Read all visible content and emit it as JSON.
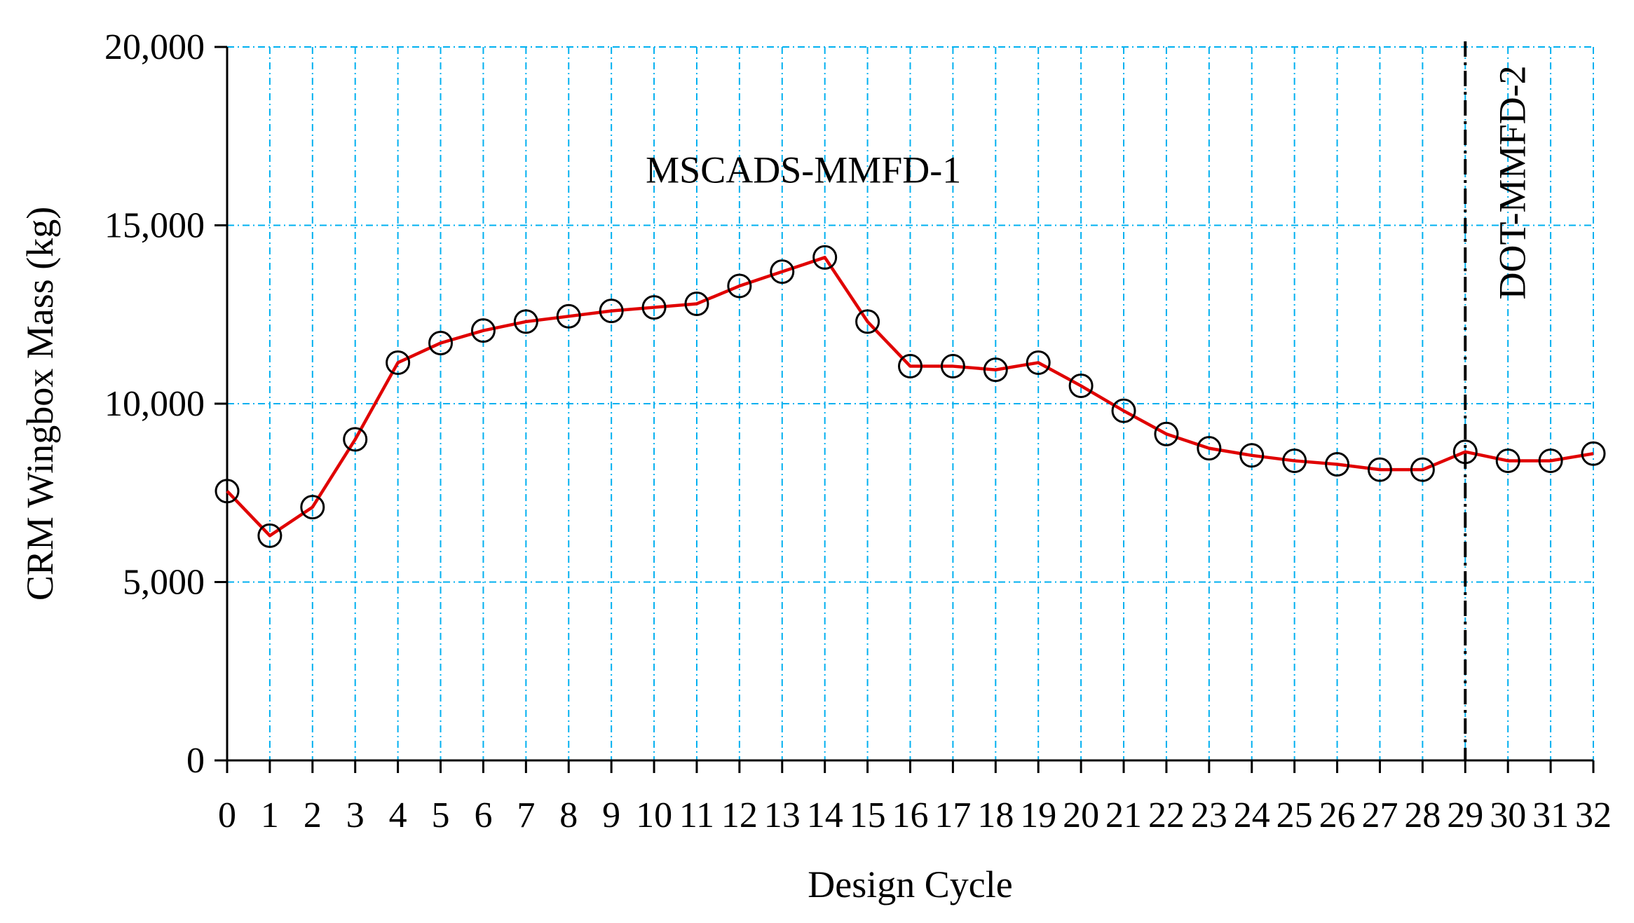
{
  "chart_data": {
    "type": "line",
    "xlabel": "Design Cycle",
    "ylabel": "CRM  Wingbox Mass (kg)",
    "xlim": [
      0,
      32
    ],
    "ylim": [
      0,
      20000
    ],
    "x_ticks": [
      0,
      1,
      2,
      3,
      4,
      5,
      6,
      7,
      8,
      9,
      10,
      11,
      12,
      13,
      14,
      15,
      16,
      17,
      18,
      19,
      20,
      21,
      22,
      23,
      24,
      25,
      26,
      27,
      28,
      29,
      30,
      31,
      32
    ],
    "y_ticks": [
      0,
      5000,
      10000,
      15000,
      20000
    ],
    "y_tick_labels": [
      "0",
      "5,000",
      "10,000",
      "15,000",
      "20,000"
    ],
    "grid": true,
    "grid_style": "dash-dot",
    "grid_color": "#00B0F0",
    "series": [
      {
        "x": [
          0,
          1,
          2,
          3,
          4,
          5,
          6,
          7,
          8,
          9,
          10,
          11,
          12,
          13,
          14,
          15,
          16,
          17,
          18,
          19,
          20,
          21,
          22,
          23,
          24,
          25,
          26,
          27,
          28,
          29,
          30,
          31,
          32
        ],
        "values": [
          7550,
          6300,
          7100,
          9000,
          11150,
          11700,
          12050,
          12300,
          12450,
          12600,
          12700,
          12800,
          13300,
          13700,
          14100,
          12300,
          11050,
          11050,
          10950,
          11150,
          10500,
          9800,
          9150,
          8750,
          8550,
          8400,
          8300,
          8150,
          8150,
          8650,
          8400,
          8400,
          8600
        ],
        "line_color": "#E00000",
        "marker": "open-circle",
        "marker_color": "#000000"
      }
    ],
    "annotations": [
      {
        "text": "MSCADS-MMFD-1",
        "x": 13.5,
        "y": 16200,
        "rotation": 0
      },
      {
        "text": "DOT-MMFD-2",
        "x": 30.4,
        "y": 16200,
        "rotation": -90
      }
    ],
    "vertical_marker": {
      "x": 29,
      "style": "dash-dot",
      "color": "#000000"
    }
  }
}
